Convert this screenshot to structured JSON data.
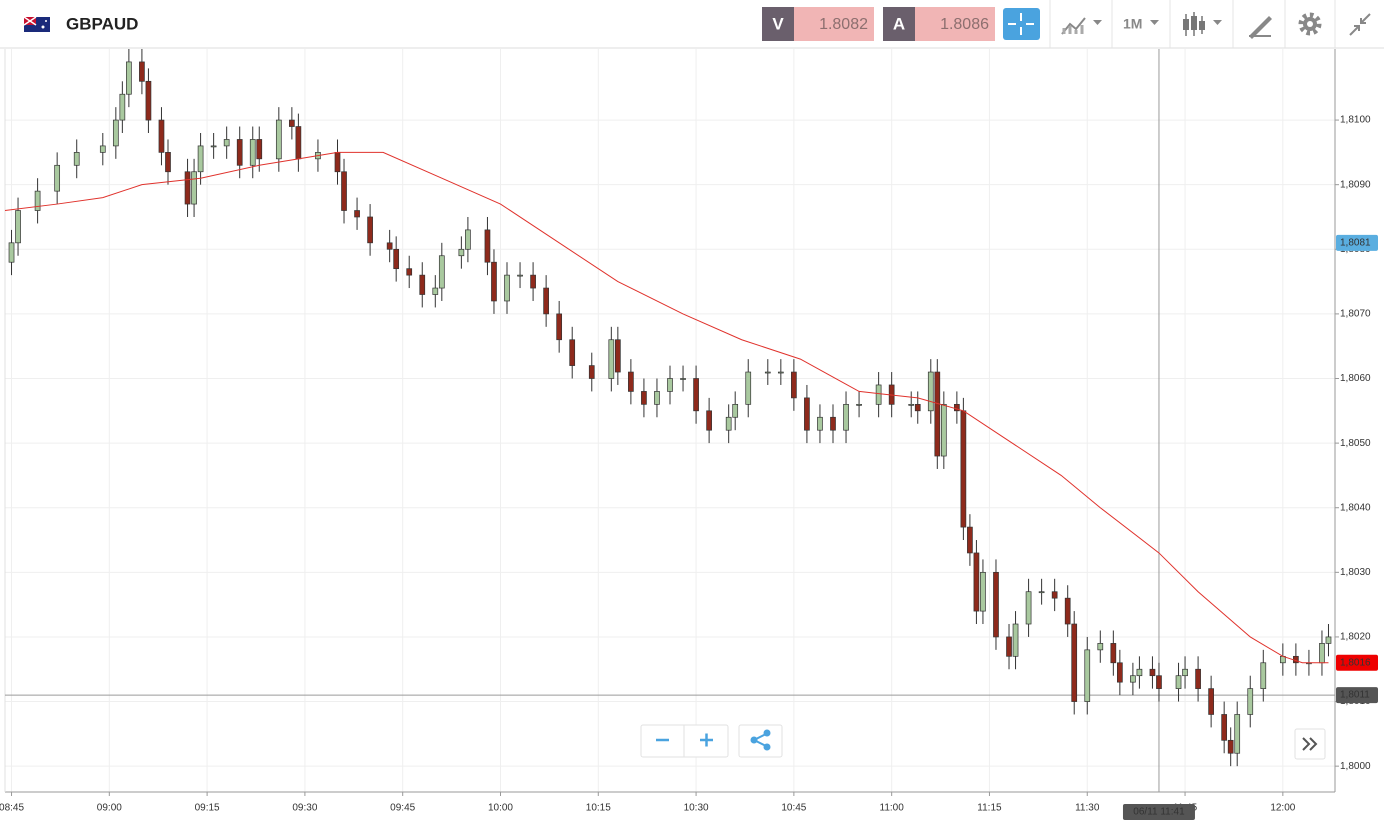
{
  "header": {
    "symbol": "GBPAUD",
    "bid_label": "V",
    "bid": 1.8082,
    "ask_label": "A",
    "ask": 1.8086,
    "timeframe": "1M"
  },
  "chart_data": {
    "type": "candlestick",
    "up_color": "#a9c99f",
    "down_color": "#8e2a1c",
    "xlim": [
      "08:44",
      "12:08"
    ],
    "xticks": [
      "08:45",
      "09:00",
      "09:15",
      "09:30",
      "09:45",
      "10:00",
      "10:15",
      "10:30",
      "10:45",
      "11:00",
      "11:15",
      "11:30",
      "11:45",
      "12:00"
    ],
    "ylim": [
      1.7996,
      1.8111
    ],
    "yticks": [
      {
        "value": 1.8,
        "label": "1,8000"
      },
      {
        "value": 1.801,
        "label": "1,8010"
      },
      {
        "value": 1.802,
        "label": "1,8020"
      },
      {
        "value": 1.803,
        "label": "1,8030"
      },
      {
        "value": 1.804,
        "label": "1,8040"
      },
      {
        "value": 1.805,
        "label": "1,8050"
      },
      {
        "value": 1.806,
        "label": "1,8060"
      },
      {
        "value": 1.807,
        "label": "1,8070"
      },
      {
        "value": 1.808,
        "label": "1,8080"
      },
      {
        "value": 1.809,
        "label": "1,8090"
      },
      {
        "value": 1.81,
        "label": "1,8100"
      }
    ],
    "grid": true,
    "x": [
      "08:45",
      "08:46",
      "08:49",
      "08:52",
      "08:55",
      "08:59",
      "09:01",
      "09:02",
      "09:03",
      "09:05",
      "09:06",
      "09:08",
      "09:09",
      "09:12",
      "09:13",
      "09:14",
      "09:16",
      "09:18",
      "09:20",
      "09:22",
      "09:23",
      "09:26",
      "09:28",
      "09:29",
      "09:32",
      "09:35",
      "09:36",
      "09:38",
      "09:40",
      "09:43",
      "09:44",
      "09:46",
      "09:48",
      "09:50",
      "09:51",
      "09:54",
      "09:55",
      "09:58",
      "09:59",
      "10:01",
      "10:03",
      "10:05",
      "10:07",
      "10:09",
      "10:11",
      "10:14",
      "10:17",
      "10:18",
      "10:20",
      "10:22",
      "10:24",
      "10:26",
      "10:28",
      "10:30",
      "10:32",
      "10:35",
      "10:36",
      "10:38",
      "10:41",
      "10:43",
      "10:45",
      "10:47",
      "10:49",
      "10:51",
      "10:53",
      "10:55",
      "10:58",
      "11:00",
      "11:03",
      "11:04",
      "11:06",
      "11:07",
      "11:08",
      "11:10",
      "11:11",
      "11:12",
      "11:13",
      "11:14",
      "11:16",
      "11:18",
      "11:19",
      "11:21",
      "11:23",
      "11:25",
      "11:27",
      "11:28",
      "11:30",
      "11:32",
      "11:34",
      "11:35",
      "11:37",
      "11:38",
      "11:40",
      "11:41",
      "11:44",
      "11:45",
      "11:47",
      "11:49",
      "11:51",
      "11:52",
      "11:53",
      "11:55",
      "11:57",
      "12:00",
      "12:02",
      "12:04",
      "12:06",
      "12:07"
    ],
    "open": [
      1.8078,
      1.8081,
      1.8086,
      1.8089,
      1.8093,
      1.8095,
      1.8096,
      1.81,
      1.8104,
      1.8109,
      1.8106,
      1.81,
      1.8095,
      1.8092,
      1.8087,
      1.8092,
      1.8096,
      1.8096,
      1.8097,
      1.8093,
      1.8097,
      1.8094,
      1.81,
      1.8099,
      1.8094,
      1.8095,
      1.8092,
      1.8086,
      1.8085,
      1.8081,
      1.808,
      1.8077,
      1.8076,
      1.8073,
      1.8074,
      1.8079,
      1.808,
      1.8083,
      1.8078,
      1.8072,
      1.8076,
      1.8076,
      1.8074,
      1.807,
      1.8066,
      1.8062,
      1.806,
      1.8066,
      1.8061,
      1.8058,
      1.8056,
      1.8058,
      1.806,
      1.806,
      1.8055,
      1.8052,
      1.8054,
      1.8056,
      1.8061,
      1.8061,
      1.8061,
      1.8057,
      1.8052,
      1.8054,
      1.8052,
      1.8056,
      1.8056,
      1.8059,
      1.8056,
      1.8056,
      1.8055,
      1.8061,
      1.8048,
      1.8056,
      1.8055,
      1.8037,
      1.8033,
      1.8024,
      1.803,
      1.802,
      1.8017,
      1.8022,
      1.8027,
      1.8027,
      1.8026,
      1.8022,
      1.801,
      1.8018,
      1.8019,
      1.8016,
      1.8013,
      1.8014,
      1.8015,
      1.8014,
      1.8012,
      1.8014,
      1.8015,
      1.8012,
      1.8008,
      1.8004,
      1.8002,
      1.8008,
      1.8012,
      1.8016,
      1.8017,
      1.8016,
      1.8016,
      1.8019
    ],
    "high": [
      1.8083,
      1.8088,
      1.8091,
      1.8095,
      1.8097,
      1.8098,
      1.8102,
      1.8106,
      1.8111,
      1.8111,
      1.8108,
      1.8102,
      1.8097,
      1.8094,
      1.8094,
      1.8098,
      1.8098,
      1.8099,
      1.8099,
      1.8099,
      1.8099,
      1.8102,
      1.8102,
      1.8101,
      1.8097,
      1.8097,
      1.8094,
      1.8088,
      1.8087,
      1.8083,
      1.8082,
      1.8079,
      1.8078,
      1.8076,
      1.8081,
      1.8082,
      1.8085,
      1.8085,
      1.808,
      1.8078,
      1.8078,
      1.8078,
      1.8076,
      1.8072,
      1.8068,
      1.8064,
      1.8068,
      1.8068,
      1.8063,
      1.806,
      1.806,
      1.8062,
      1.8062,
      1.8062,
      1.8057,
      1.8056,
      1.8058,
      1.8063,
      1.8063,
      1.8063,
      1.8063,
      1.8059,
      1.8056,
      1.8056,
      1.8058,
      1.8058,
      1.8061,
      1.8061,
      1.8058,
      1.8058,
      1.8063,
      1.8063,
      1.8058,
      1.8058,
      1.8057,
      1.8039,
      1.8035,
      1.8032,
      1.8032,
      1.8022,
      1.8024,
      1.8029,
      1.8029,
      1.8029,
      1.8028,
      1.8024,
      1.802,
      1.8021,
      1.8021,
      1.8018,
      1.8016,
      1.8017,
      1.8017,
      1.8016,
      1.8016,
      1.8017,
      1.8017,
      1.8014,
      1.801,
      1.8006,
      1.801,
      1.8014,
      1.8018,
      1.8019,
      1.8019,
      1.8018,
      1.8021,
      1.8022
    ],
    "low": [
      1.8076,
      1.8079,
      1.8084,
      1.8087,
      1.8091,
      1.8093,
      1.8094,
      1.8098,
      1.8102,
      1.8104,
      1.8098,
      1.8093,
      1.809,
      1.8085,
      1.8085,
      1.809,
      1.8094,
      1.8094,
      1.8091,
      1.8091,
      1.8092,
      1.8092,
      1.8097,
      1.8092,
      1.8092,
      1.809,
      1.8084,
      1.8083,
      1.8079,
      1.8078,
      1.8075,
      1.8074,
      1.8071,
      1.8071,
      1.8072,
      1.8077,
      1.8078,
      1.8076,
      1.807,
      1.807,
      1.8074,
      1.8072,
      1.8068,
      1.8064,
      1.806,
      1.8058,
      1.8058,
      1.8059,
      1.8056,
      1.8054,
      1.8054,
      1.8056,
      1.8058,
      1.8053,
      1.805,
      1.805,
      1.8052,
      1.8054,
      1.8059,
      1.8059,
      1.8055,
      1.805,
      1.805,
      1.805,
      1.805,
      1.8054,
      1.8054,
      1.8054,
      1.8054,
      1.8053,
      1.8053,
      1.8046,
      1.8046,
      1.8053,
      1.8035,
      1.8031,
      1.8022,
      1.8022,
      1.8018,
      1.8015,
      1.8015,
      1.802,
      1.8025,
      1.8024,
      1.802,
      1.8008,
      1.8008,
      1.8016,
      1.8014,
      1.8011,
      1.8011,
      1.8012,
      1.8012,
      1.801,
      1.801,
      1.8012,
      1.801,
      1.8006,
      1.8002,
      1.8,
      1.8,
      1.8006,
      1.801,
      1.8014,
      1.8014,
      1.8014,
      1.8014,
      1.8017
    ],
    "close": [
      1.8081,
      1.8086,
      1.8089,
      1.8093,
      1.8095,
      1.8096,
      1.81,
      1.8104,
      1.8109,
      1.8106,
      1.81,
      1.8095,
      1.8092,
      1.8087,
      1.8092,
      1.8096,
      1.8096,
      1.8097,
      1.8093,
      1.8097,
      1.8094,
      1.81,
      1.8099,
      1.8094,
      1.8095,
      1.8092,
      1.8086,
      1.8085,
      1.8081,
      1.808,
      1.8077,
      1.8076,
      1.8073,
      1.8074,
      1.8079,
      1.808,
      1.8083,
      1.8078,
      1.8072,
      1.8076,
      1.8076,
      1.8074,
      1.807,
      1.8066,
      1.8062,
      1.806,
      1.8066,
      1.8061,
      1.8058,
      1.8056,
      1.8058,
      1.806,
      1.806,
      1.8055,
      1.8052,
      1.8054,
      1.8056,
      1.8061,
      1.8061,
      1.8061,
      1.8057,
      1.8052,
      1.8054,
      1.8052,
      1.8056,
      1.8056,
      1.8059,
      1.8056,
      1.8056,
      1.8055,
      1.8061,
      1.8048,
      1.8056,
      1.8055,
      1.8037,
      1.8033,
      1.8024,
      1.803,
      1.802,
      1.8017,
      1.8022,
      1.8027,
      1.8027,
      1.8026,
      1.8022,
      1.801,
      1.8018,
      1.8019,
      1.8016,
      1.8013,
      1.8014,
      1.8015,
      1.8014,
      1.8012,
      1.8014,
      1.8015,
      1.8012,
      1.8008,
      1.8004,
      1.8002,
      1.8008,
      1.8012,
      1.8016,
      1.8017,
      1.8016,
      1.8016,
      1.8019,
      1.802
    ],
    "moving_average": {
      "color": "#e0322c",
      "x": [
        "08:44",
        "08:52",
        "08:59",
        "09:05",
        "09:14",
        "09:23",
        "09:29",
        "09:35",
        "09:42",
        "09:51",
        "10:00",
        "10:09",
        "10:18",
        "10:28",
        "10:37",
        "10:46",
        "10:55",
        "11:04",
        "11:11",
        "11:17",
        "11:26",
        "11:32",
        "11:41",
        "11:47",
        "11:55",
        "12:00",
        "12:03",
        "12:07"
      ],
      "values": [
        1.8086,
        1.8087,
        1.8088,
        1.809,
        1.8091,
        1.8093,
        1.8094,
        1.8095,
        1.8095,
        1.8091,
        1.8087,
        1.8081,
        1.8075,
        1.807,
        1.8066,
        1.8063,
        1.8058,
        1.8057,
        1.8055,
        1.8051,
        1.8045,
        1.804,
        1.8033,
        1.8027,
        1.802,
        1.8017,
        1.8016,
        1.8016
      ]
    },
    "price_badges": [
      {
        "value": 1.8081,
        "label": "1,8081",
        "color": "#5aaee0"
      },
      {
        "value": 1.8016,
        "label": "1,8016",
        "color": "#ee0000"
      }
    ],
    "crosshair": {
      "x": "11:41",
      "x_label": "06/11 11:41",
      "y": 1.8011,
      "y_label": "1,8011"
    }
  }
}
